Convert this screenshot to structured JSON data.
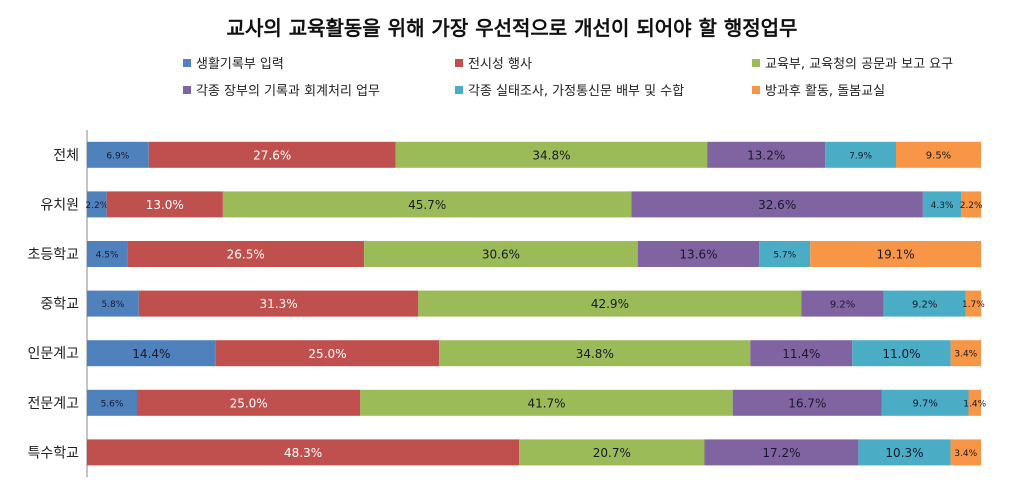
{
  "chart_data": {
    "type": "bar",
    "orientation": "horizontal",
    "stacked": "100%",
    "title": "교사의 교육활동을 위해 가장 우선적으로 개선이 되어야 할 행정업무",
    "categories": [
      "전체",
      "유치원",
      "초등학교",
      "중학교",
      "인문계고",
      "전문계고",
      "특수학교"
    ],
    "legend_position": "top",
    "grid": false,
    "series": [
      {
        "name": "생활기록부 입력",
        "color": "#4F81BD",
        "values": [
          6.9,
          2.2,
          4.5,
          5.8,
          14.4,
          5.6,
          0
        ]
      },
      {
        "name": "전시성 행사",
        "color": "#C0504D",
        "values": [
          27.6,
          13.0,
          26.5,
          31.3,
          25.0,
          25.0,
          48.3
        ]
      },
      {
        "name": "교육부, 교육청의 공문과 보고 요구",
        "color": "#9BBB59",
        "values": [
          34.8,
          45.7,
          30.6,
          42.9,
          34.8,
          41.7,
          20.7
        ]
      },
      {
        "name": "각종 장부의 기록과 회계처리 업무",
        "color": "#8064A2",
        "values": [
          13.2,
          32.6,
          13.6,
          9.2,
          11.4,
          16.7,
          17.2
        ]
      },
      {
        "name": "각종 실태조사, 가정통신문 배부 및 수합",
        "color": "#4BACC6",
        "values": [
          7.9,
          4.3,
          5.7,
          9.2,
          11.0,
          9.7,
          10.3
        ]
      },
      {
        "name": "방과후 활동, 돌봄교실",
        "color": "#F79646",
        "values": [
          9.5,
          2.2,
          19.1,
          1.7,
          3.4,
          1.4,
          3.4
        ]
      }
    ]
  }
}
